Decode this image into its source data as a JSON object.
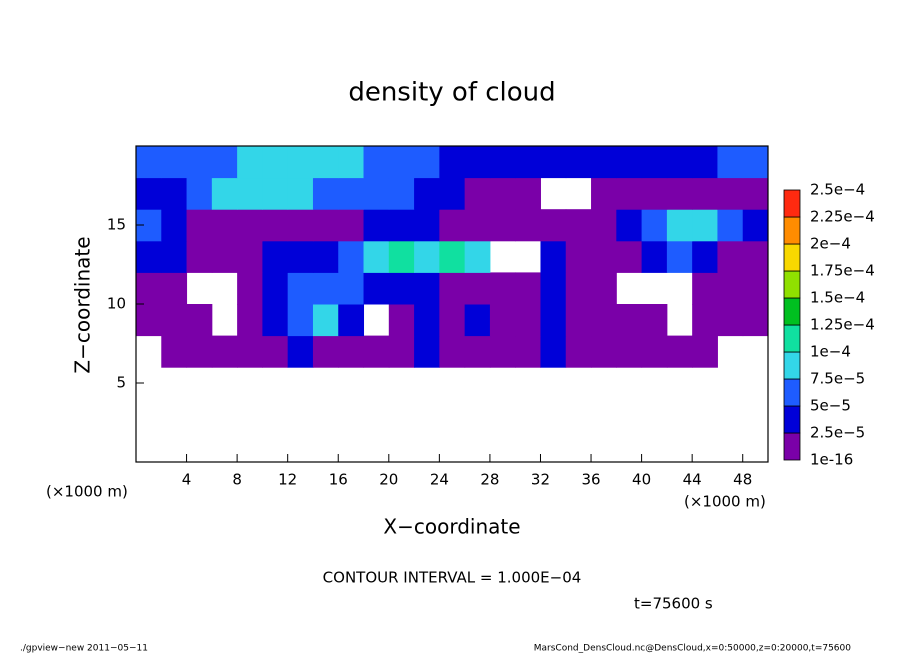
{
  "chart_data": {
    "type": "contourf",
    "title": "density of cloud",
    "x_label": "X−coordinate",
    "y_label": "Z−coordinate",
    "x_unit": "(×1000 m)",
    "y_unit": "(×1000 m)",
    "contour_note": "CONTOUR INTERVAL = 1.000E−04",
    "time_label": "t=75600 s",
    "footer_left": "./gpview−new  2011−05−11",
    "footer_right": "MarsCond_DensCloud.nc@DensCloud,x=0:50000,z=0:20000,t=75600",
    "xlim": [
      0,
      50
    ],
    "ylim": [
      0,
      20
    ],
    "xticks": [
      4,
      8,
      12,
      16,
      20,
      24,
      28,
      32,
      36,
      40,
      44,
      48
    ],
    "yticks": [
      5,
      10,
      15
    ],
    "x": [
      1,
      3,
      5,
      7,
      9,
      11,
      13,
      15,
      17,
      19,
      21,
      23,
      25,
      27,
      29,
      31,
      33,
      35,
      37,
      39,
      41,
      43,
      45,
      47,
      49
    ],
    "y": [
      1,
      3,
      5,
      7,
      9,
      11,
      13,
      15,
      17,
      19
    ],
    "z": [
      [
        null,
        null,
        null,
        null,
        null,
        null,
        null,
        null,
        null,
        null,
        null,
        null,
        null,
        null,
        null,
        null,
        null,
        null,
        null,
        null,
        null,
        null,
        null,
        null,
        null
      ],
      [
        null,
        null,
        null,
        null,
        null,
        null,
        null,
        null,
        null,
        null,
        null,
        null,
        null,
        null,
        null,
        null,
        null,
        null,
        null,
        null,
        null,
        null,
        null,
        null,
        null
      ],
      [
        null,
        null,
        null,
        null,
        null,
        null,
        null,
        null,
        null,
        null,
        null,
        null,
        null,
        null,
        null,
        null,
        null,
        null,
        null,
        null,
        null,
        null,
        null,
        null,
        null
      ],
      [
        null,
        1e-05,
        1e-05,
        1e-05,
        1e-05,
        1e-05,
        3e-05,
        1e-05,
        1e-05,
        1e-05,
        1e-05,
        3e-05,
        1e-05,
        1e-05,
        1e-05,
        1e-05,
        3e-05,
        1e-05,
        1e-05,
        1e-05,
        1e-05,
        1e-05,
        1e-05,
        null,
        null
      ],
      [
        1e-05,
        1e-05,
        1e-05,
        null,
        1e-05,
        3e-05,
        6e-05,
        8e-05,
        3e-05,
        null,
        1e-05,
        3e-05,
        1e-05,
        3e-05,
        1e-05,
        1e-05,
        3e-05,
        1e-05,
        1e-05,
        1e-05,
        1e-05,
        null,
        1e-05,
        1e-05,
        1e-05
      ],
      [
        1e-05,
        1e-05,
        null,
        null,
        1e-05,
        3e-05,
        6e-05,
        6e-05,
        6e-05,
        3e-05,
        3e-05,
        3e-05,
        1e-05,
        1e-05,
        1e-05,
        1e-05,
        3e-05,
        1e-05,
        1e-05,
        null,
        null,
        null,
        1e-05,
        1e-05,
        1e-05
      ],
      [
        3e-05,
        3e-05,
        1e-05,
        1e-05,
        1e-05,
        3e-05,
        3e-05,
        3e-05,
        6e-05,
        8e-05,
        0.00011,
        8e-05,
        0.00011,
        8e-05,
        null,
        null,
        3e-05,
        1e-05,
        1e-05,
        1e-05,
        3e-05,
        6e-05,
        3e-05,
        1e-05,
        1e-05
      ],
      [
        6e-05,
        3e-05,
        1e-05,
        1e-05,
        1e-05,
        1e-05,
        1e-05,
        1e-05,
        1e-05,
        3e-05,
        3e-05,
        3e-05,
        1e-05,
        1e-05,
        1e-05,
        1e-05,
        1e-05,
        1e-05,
        1e-05,
        3e-05,
        6e-05,
        8e-05,
        8e-05,
        6e-05,
        3e-05
      ],
      [
        3e-05,
        3e-05,
        6e-05,
        8e-05,
        8e-05,
        8e-05,
        8e-05,
        6e-05,
        6e-05,
        6e-05,
        6e-05,
        3e-05,
        3e-05,
        1e-05,
        1e-05,
        1e-05,
        null,
        null,
        1e-05,
        1e-05,
        1e-05,
        1e-05,
        1e-05,
        1e-05,
        1e-05
      ],
      [
        6e-05,
        6e-05,
        6e-05,
        6e-05,
        8e-05,
        8e-05,
        8e-05,
        8e-05,
        8e-05,
        6e-05,
        6e-05,
        6e-05,
        3e-05,
        3e-05,
        3e-05,
        3e-05,
        3e-05,
        3e-05,
        3e-05,
        3e-05,
        3e-05,
        3e-05,
        3e-05,
        6e-05,
        6e-05
      ]
    ],
    "levels": [
      1e-16,
      {
        "value": 2.5e-05,
        "label": "2.5e−5"
      },
      {
        "value": 5e-05,
        "label": "5e−5"
      },
      {
        "value": 7.5e-05,
        "label": "7.5e−5"
      },
      {
        "value": 0.0001,
        "label": "1e−4"
      },
      {
        "value": 0.000125,
        "label": "1.25e−4"
      },
      {
        "value": 0.00015,
        "label": "1.5e−4"
      },
      {
        "value": 0.000175,
        "label": "1.75e−4"
      },
      {
        "value": 0.0002,
        "label": "2e−4"
      },
      {
        "value": 0.000225,
        "label": "2.25e−4"
      },
      {
        "value": 0.00025,
        "label": "2.5e−4"
      }
    ],
    "colors": [
      "#7a00a8",
      "#0000d8",
      "#1e5cff",
      "#33d6e8",
      "#10e0a0",
      "#00c020",
      "#90e000",
      "#f8d800",
      "#ff8c00",
      "#ff2a10",
      "#ffa0a8"
    ]
  }
}
